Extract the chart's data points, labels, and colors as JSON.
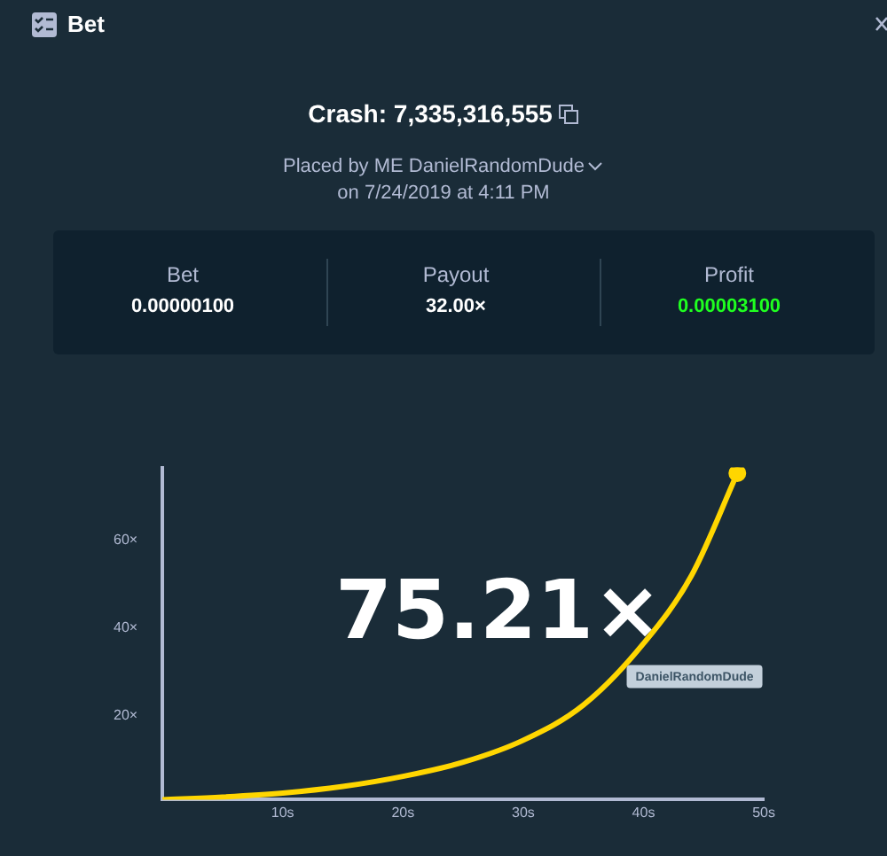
{
  "chart_data": {
    "type": "line",
    "title": "Bet",
    "subtitle": "Crash: 7,335,316,555",
    "annotations": [
      "Placed by ME DanielRandomDude",
      "on 7/24/2019 at 4:11 PM",
      "Bet",
      "0.00000100",
      "Payout",
      "32.00×",
      "Profit",
      "0.00003100",
      "75.21×",
      {
        "text": "DanielRandomDude",
        "x": 38.6,
        "y": 32
      }
    ],
    "x": [
      0,
      5,
      10,
      15,
      20,
      25,
      30,
      35,
      40,
      44,
      47.8
    ],
    "series": [
      {
        "color": "#ffd600",
        "values": [
          1,
          1.6,
          2.5,
          4,
          6.3,
          9.5,
          14.5,
          22.5,
          36.5,
          52,
          75.21
        ]
      }
    ],
    "xlim": [
      0,
      50
    ],
    "xticks": [
      {
        "value": 10,
        "label": "10s"
      },
      {
        "value": 20,
        "label": "20s"
      },
      {
        "value": 30,
        "label": "30s"
      },
      {
        "value": 40,
        "label": "40s"
      },
      {
        "value": 50,
        "label": "50s"
      }
    ],
    "ylim": [
      1,
      76.5
    ],
    "yticks": [
      {
        "value": 20,
        "label": "20×"
      },
      {
        "value": 40,
        "label": "40×"
      },
      {
        "value": 60,
        "label": "60×"
      }
    ],
    "grid": false,
    "legend": false,
    "marker": "none",
    "line_style": "solid"
  }
}
